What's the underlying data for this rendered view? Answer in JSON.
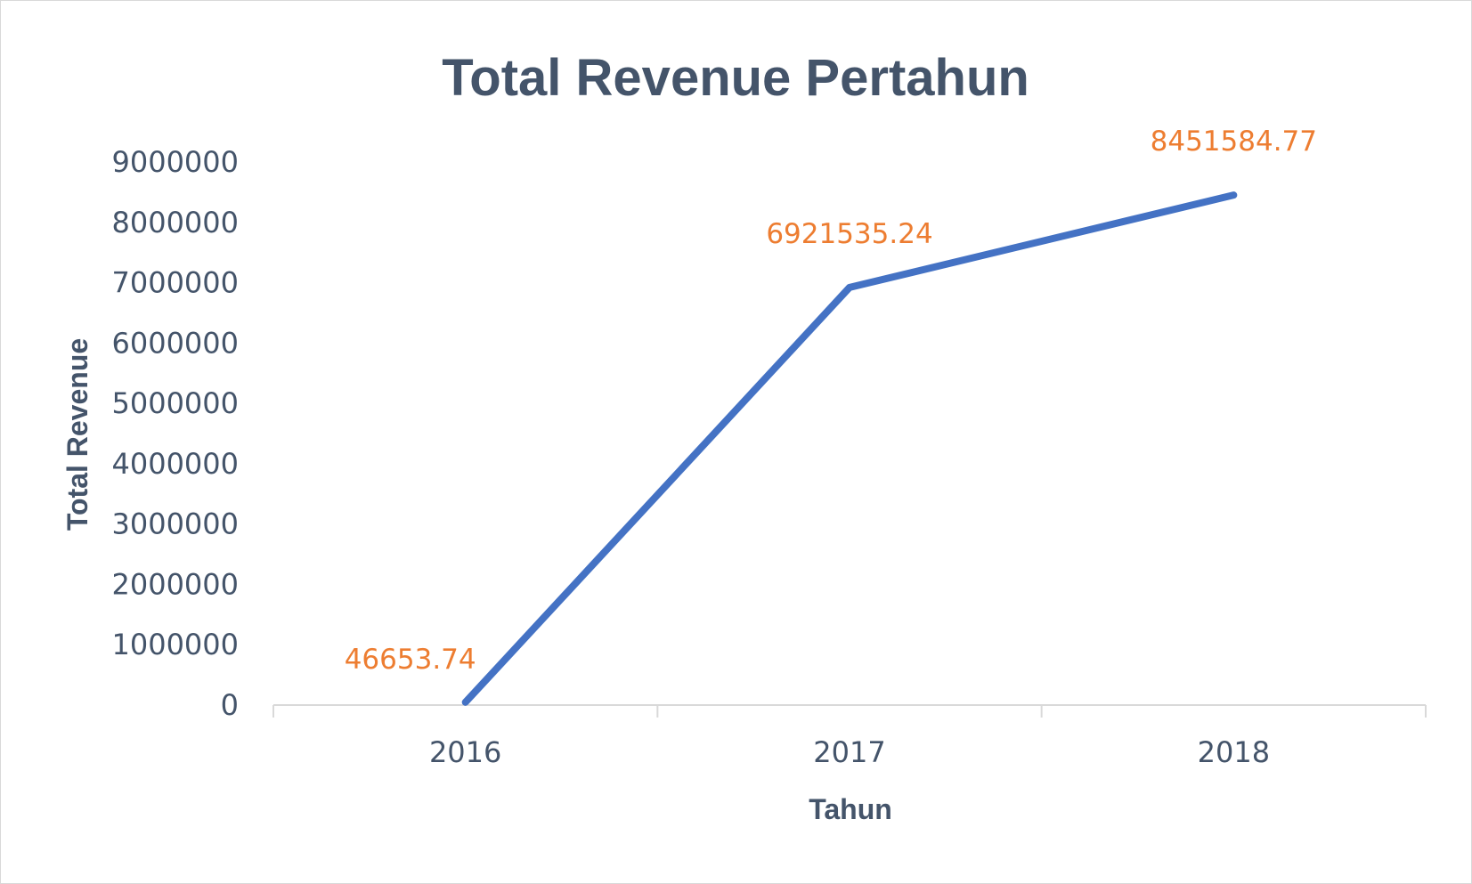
{
  "chart_data": {
    "type": "line",
    "title": "Total Revenue Pertahun",
    "xlabel": "Tahun",
    "ylabel": "Total Revenue",
    "categories": [
      "2016",
      "2017",
      "2018"
    ],
    "series": [
      {
        "values": [
          46653.74,
          6921535.24,
          8451584.77
        ],
        "data_labels": [
          "46653.74",
          "6921535.24",
          "8451584.77"
        ],
        "color": "#4472c4",
        "label_color": "#ed7d31"
      }
    ],
    "ylim": [
      0,
      9000000
    ],
    "y_ticks": [
      "0",
      "1000000",
      "2000000",
      "3000000",
      "4000000",
      "5000000",
      "6000000",
      "7000000",
      "8000000",
      "9000000"
    ],
    "grid": false,
    "legend": "none"
  }
}
